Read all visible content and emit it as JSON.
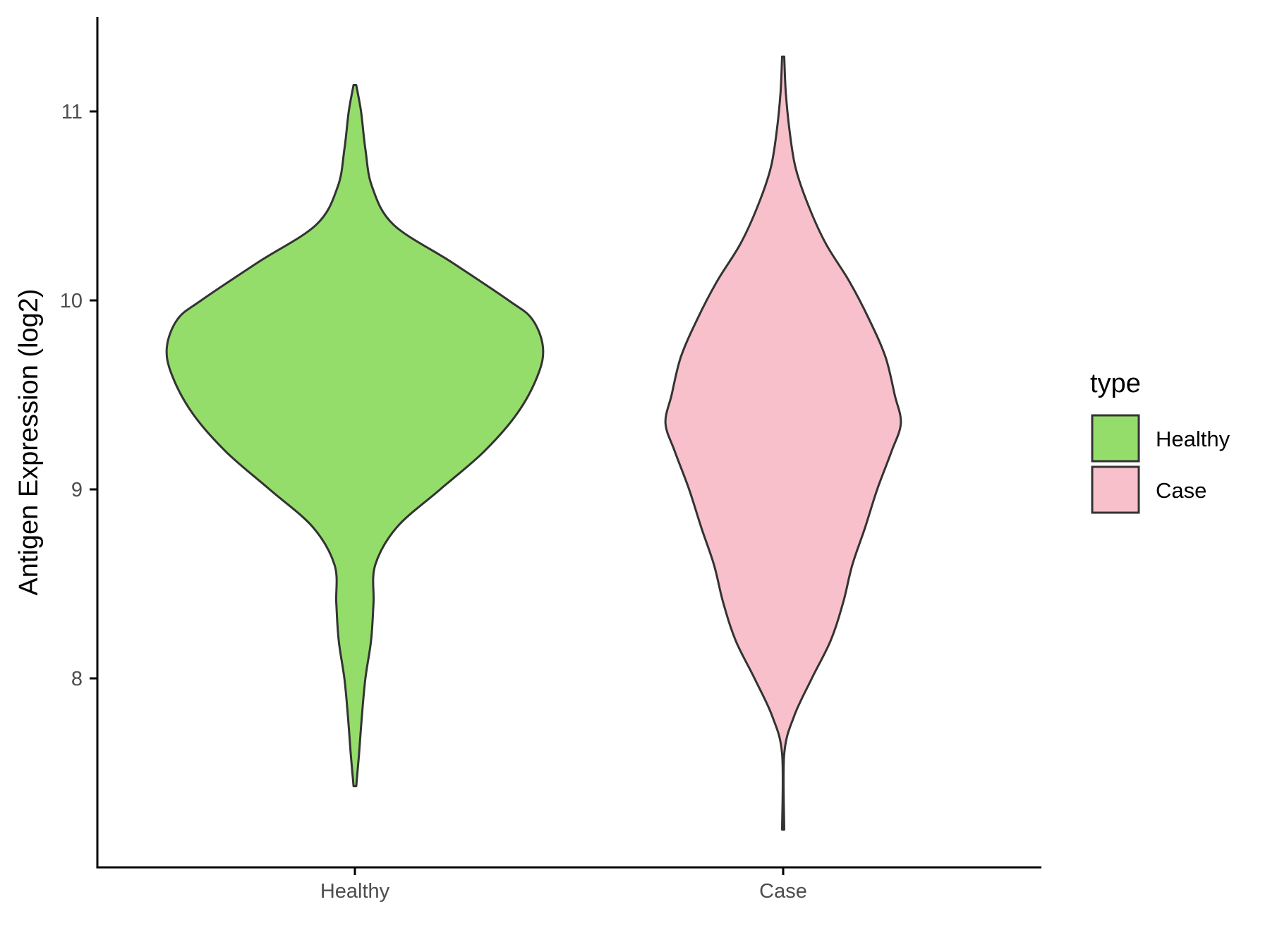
{
  "chart_data": {
    "type": "violin",
    "title": "",
    "xlabel": "",
    "ylabel": "Antigen Expression (log2)",
    "ylim": [
      7.0,
      11.5
    ],
    "yticks": [
      8,
      9,
      10,
      11
    ],
    "grid": false,
    "legend": {
      "title": "type",
      "placement": "right",
      "entries": [
        "Healthy",
        "Case"
      ]
    },
    "categories": [
      "Healthy",
      "Case"
    ],
    "series": [
      {
        "name": "Healthy",
        "color": "#95dd6a",
        "min": 7.43,
        "max": 11.14,
        "profile": [
          [
            7.43,
            0.006
          ],
          [
            7.6,
            0.019
          ],
          [
            7.8,
            0.032
          ],
          [
            8.0,
            0.048
          ],
          [
            8.2,
            0.074
          ],
          [
            8.4,
            0.085
          ],
          [
            8.6,
            0.093
          ],
          [
            8.8,
            0.192
          ],
          [
            9.0,
            0.39
          ],
          [
            9.2,
            0.59
          ],
          [
            9.4,
            0.741
          ],
          [
            9.6,
            0.835
          ],
          [
            9.75,
            0.86
          ],
          [
            9.9,
            0.811
          ],
          [
            10.0,
            0.703
          ],
          [
            10.2,
            0.445
          ],
          [
            10.4,
            0.177
          ],
          [
            10.6,
            0.079
          ],
          [
            10.8,
            0.048
          ],
          [
            11.0,
            0.028
          ],
          [
            11.14,
            0.006
          ]
        ]
      },
      {
        "name": "Case",
        "color": "#f8c0cb",
        "min": 7.2,
        "max": 11.29,
        "profile": [
          [
            7.2,
            0.005
          ],
          [
            7.6,
            0.005
          ],
          [
            7.8,
            0.05
          ],
          [
            8.0,
            0.131
          ],
          [
            8.2,
            0.217
          ],
          [
            8.4,
            0.274
          ],
          [
            8.6,
            0.316
          ],
          [
            8.8,
            0.375
          ],
          [
            9.0,
            0.43
          ],
          [
            9.2,
            0.495
          ],
          [
            9.35,
            0.538
          ],
          [
            9.5,
            0.51
          ],
          [
            9.7,
            0.468
          ],
          [
            9.9,
            0.393
          ],
          [
            10.1,
            0.303
          ],
          [
            10.3,
            0.195
          ],
          [
            10.5,
            0.116
          ],
          [
            10.7,
            0.057
          ],
          [
            10.9,
            0.029
          ],
          [
            11.1,
            0.012
          ],
          [
            11.29,
            0.005
          ]
        ]
      }
    ]
  }
}
